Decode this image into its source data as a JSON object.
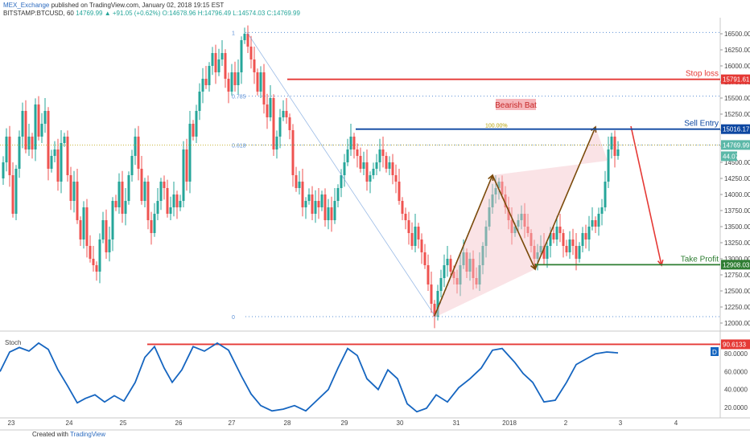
{
  "header": {
    "publisher": "MEX_Exchange",
    "published_text": "published on TradingView.com, January 02, 2018 19:15 EST",
    "symbol": "BITSTAMP:BTCUSD, 60",
    "ohlc": "14769.99 ▲ +91.05 (+0.62%) O:14678.96 H:14796.49 L:14574.03 C:14769.99"
  },
  "footer": {
    "created_with": "Created with",
    "brand": "TradingView"
  },
  "colors": {
    "up": "#26a69a",
    "down": "#ef5350",
    "stop": "#e53935",
    "entry": "#0d47a1",
    "tp": "#2e7d32",
    "stoch": "#1565c0",
    "arrow": "#7a4a0a"
  },
  "chart_data": [
    {
      "type": "candlestick",
      "title": "",
      "y_ticks": [
        "16500.00",
        "16250.00",
        "16000.00",
        "15750.00",
        "15500.00",
        "15250.00",
        "15000.00",
        "14750.00",
        "14500.00",
        "14250.00",
        "14000.00",
        "13750.00",
        "13500.00",
        "13250.00",
        "13000.00",
        "12750.00",
        "12500.00",
        "12250.00",
        "12000.00"
      ],
      "ylim": [
        11900,
        16750
      ],
      "x_ticks": [
        "23",
        "24",
        "25",
        "26",
        "27",
        "28",
        "29",
        "30",
        "31",
        "2018",
        "2",
        "3",
        "4"
      ],
      "close_path": [
        [
          0,
          14250
        ],
        [
          4,
          14500
        ],
        [
          8,
          14900
        ],
        [
          12,
          14300
        ],
        [
          16,
          13700
        ],
        [
          20,
          14400
        ],
        [
          24,
          14900
        ],
        [
          28,
          15300
        ],
        [
          32,
          14700
        ],
        [
          36,
          14900
        ],
        [
          40,
          14700
        ],
        [
          44,
          15400
        ],
        [
          48,
          14900
        ],
        [
          52,
          15100
        ],
        [
          56,
          15300
        ],
        [
          60,
          14400
        ],
        [
          64,
          14600
        ],
        [
          68,
          14700
        ],
        [
          72,
          14200
        ],
        [
          76,
          14800
        ],
        [
          80,
          14900
        ],
        [
          84,
          14300
        ],
        [
          88,
          13900
        ],
        [
          92,
          14200
        ],
        [
          96,
          13600
        ],
        [
          100,
          13300
        ],
        [
          104,
          13800
        ],
        [
          108,
          13200
        ],
        [
          112,
          13000
        ],
        [
          116,
          12900
        ],
        [
          120,
          12800
        ],
        [
          124,
          13300
        ],
        [
          128,
          13600
        ],
        [
          132,
          13100
        ],
        [
          136,
          13300
        ],
        [
          140,
          13900
        ],
        [
          144,
          13800
        ],
        [
          148,
          14200
        ],
        [
          152,
          13700
        ],
        [
          156,
          13900
        ],
        [
          160,
          14300
        ],
        [
          164,
          14600
        ],
        [
          168,
          14900
        ],
        [
          172,
          14400
        ],
        [
          176,
          13900
        ],
        [
          180,
          14200
        ],
        [
          184,
          13600
        ],
        [
          188,
          13400
        ],
        [
          192,
          13700
        ],
        [
          196,
          13900
        ],
        [
          200,
          14200
        ],
        [
          204,
          14100
        ],
        [
          208,
          13700
        ],
        [
          212,
          13800
        ],
        [
          216,
          14000
        ],
        [
          220,
          13800
        ],
        [
          224,
          13900
        ],
        [
          228,
          14700
        ],
        [
          232,
          14200
        ],
        [
          236,
          15100
        ],
        [
          240,
          14900
        ],
        [
          244,
          15300
        ],
        [
          248,
          15600
        ],
        [
          252,
          15800
        ],
        [
          256,
          15700
        ],
        [
          260,
          16000
        ],
        [
          264,
          16200
        ],
        [
          268,
          15900
        ],
        [
          272,
          16100
        ],
        [
          276,
          16200
        ],
        [
          280,
          15800
        ],
        [
          284,
          15600
        ],
        [
          288,
          15900
        ],
        [
          292,
          15700
        ],
        [
          296,
          15900
        ],
        [
          300,
          16400
        ],
        [
          304,
          16500
        ],
        [
          308,
          16300
        ],
        [
          312,
          16100
        ],
        [
          316,
          15900
        ],
        [
          320,
          15600
        ],
        [
          324,
          15900
        ],
        [
          328,
          15400
        ],
        [
          332,
          15200
        ],
        [
          336,
          15500
        ],
        [
          340,
          14700
        ],
        [
          344,
          14900
        ],
        [
          348,
          15200
        ],
        [
          352,
          15300
        ],
        [
          356,
          15200
        ],
        [
          360,
          15000
        ],
        [
          364,
          14300
        ],
        [
          368,
          14100
        ],
        [
          372,
          14200
        ],
        [
          376,
          13800
        ],
        [
          380,
          13900
        ],
        [
          384,
          14000
        ],
        [
          388,
          13700
        ],
        [
          392,
          13900
        ],
        [
          396,
          13800
        ],
        [
          400,
          14000
        ],
        [
          404,
          13600
        ],
        [
          408,
          13800
        ],
        [
          412,
          13600
        ],
        [
          416,
          13900
        ],
        [
          420,
          14100
        ],
        [
          424,
          14300
        ],
        [
          428,
          14500
        ],
        [
          432,
          14700
        ],
        [
          436,
          14900
        ],
        [
          440,
          14700
        ],
        [
          444,
          14600
        ],
        [
          448,
          14400
        ],
        [
          452,
          14500
        ],
        [
          456,
          14200
        ],
        [
          460,
          14300
        ],
        [
          464,
          14400
        ],
        [
          468,
          14500
        ],
        [
          472,
          14700
        ],
        [
          476,
          14600
        ],
        [
          480,
          14400
        ],
        [
          484,
          14500
        ],
        [
          488,
          14300
        ],
        [
          492,
          14200
        ],
        [
          496,
          13900
        ],
        [
          500,
          13700
        ],
        [
          504,
          13600
        ],
        [
          508,
          13400
        ],
        [
          512,
          13200
        ],
        [
          516,
          13500
        ],
        [
          520,
          13300
        ],
        [
          524,
          13100
        ],
        [
          528,
          12900
        ],
        [
          532,
          12600
        ],
        [
          536,
          12300
        ],
        [
          540,
          12100
        ],
        [
          544,
          12500
        ],
        [
          548,
          12700
        ],
        [
          552,
          12900
        ],
        [
          556,
          13000
        ],
        [
          560,
          12800
        ],
        [
          564,
          12700
        ],
        [
          568,
          12600
        ],
        [
          572,
          12900
        ],
        [
          576,
          13100
        ],
        [
          580,
          12800
        ],
        [
          584,
          13000
        ],
        [
          588,
          12700
        ],
        [
          592,
          12600
        ],
        [
          596,
          12900
        ],
        [
          600,
          13200
        ],
        [
          604,
          13500
        ],
        [
          608,
          13800
        ],
        [
          612,
          14000
        ],
        [
          616,
          14100
        ],
        [
          620,
          14200
        ],
        [
          624,
          14000
        ],
        [
          628,
          13800
        ],
        [
          632,
          13600
        ],
        [
          636,
          13400
        ],
        [
          640,
          13500
        ],
        [
          644,
          13600
        ],
        [
          648,
          13700
        ],
        [
          652,
          13500
        ],
        [
          656,
          13400
        ],
        [
          660,
          13200
        ],
        [
          664,
          13000
        ],
        [
          668,
          13100
        ],
        [
          672,
          13200
        ],
        [
          676,
          13000
        ],
        [
          680,
          13200
        ],
        [
          684,
          13400
        ],
        [
          688,
          13300
        ],
        [
          692,
          13500
        ],
        [
          696,
          13400
        ],
        [
          700,
          13200
        ],
        [
          704,
          13100
        ],
        [
          708,
          13300
        ],
        [
          712,
          13200
        ],
        [
          716,
          13000
        ],
        [
          720,
          13200
        ],
        [
          724,
          13400
        ],
        [
          728,
          13300
        ],
        [
          732,
          13500
        ],
        [
          736,
          13600
        ],
        [
          740,
          13500
        ],
        [
          744,
          13700
        ],
        [
          748,
          13800
        ],
        [
          752,
          14200
        ],
        [
          756,
          14700
        ],
        [
          760,
          14900
        ],
        [
          764,
          14600
        ],
        [
          768,
          14700
        ]
      ],
      "levels": [
        {
          "label": "Stop loss",
          "value": 15791.61,
          "value_label": "15791.61",
          "color": "#e53935"
        },
        {
          "label": "Sell Entry",
          "value": 15016.17,
          "value_label": "15016.17",
          "color": "#0d47a1"
        },
        {
          "label": "Take Profit",
          "value": 12908.03,
          "value_label": "12908.03",
          "color": "#2e7d32"
        }
      ],
      "last_price_label": "14769.99",
      "last_price": 14769.99,
      "volume_label": "44.07",
      "fib_levels": [
        {
          "label": "1",
          "value": 16520
        },
        {
          "label": "0.785",
          "value": 15530
        },
        {
          "label": "0.618",
          "value": 14770
        },
        {
          "label": "0",
          "value": 12100
        }
      ],
      "entry_fib_label": "100.00%",
      "pattern_label": "Bearish Bat"
    },
    {
      "type": "line",
      "name": "Stoch",
      "y_ticks": [
        "80.0000",
        "60.0000",
        "40.0000",
        "20.0000"
      ],
      "ylim": [
        10,
        100
      ],
      "level_label": "90.6133",
      "level_value": 90.6133,
      "badge": "D",
      "points": [
        [
          0,
          60
        ],
        [
          12,
          82
        ],
        [
          24,
          87
        ],
        [
          36,
          83
        ],
        [
          48,
          92
        ],
        [
          60,
          85
        ],
        [
          72,
          62
        ],
        [
          84,
          44
        ],
        [
          96,
          25
        ],
        [
          106,
          30
        ],
        [
          118,
          34
        ],
        [
          130,
          26
        ],
        [
          142,
          33
        ],
        [
          154,
          27
        ],
        [
          168,
          48
        ],
        [
          180,
          76
        ],
        [
          192,
          88
        ],
        [
          204,
          64
        ],
        [
          214,
          48
        ],
        [
          226,
          62
        ],
        [
          240,
          88
        ],
        [
          254,
          83
        ],
        [
          270,
          92
        ],
        [
          284,
          84
        ],
        [
          300,
          55
        ],
        [
          312,
          35
        ],
        [
          324,
          22
        ],
        [
          338,
          16
        ],
        [
          352,
          18
        ],
        [
          366,
          22
        ],
        [
          380,
          16
        ],
        [
          394,
          28
        ],
        [
          408,
          40
        ],
        [
          420,
          64
        ],
        [
          432,
          86
        ],
        [
          444,
          78
        ],
        [
          456,
          52
        ],
        [
          470,
          40
        ],
        [
          482,
          62
        ],
        [
          494,
          52
        ],
        [
          506,
          24
        ],
        [
          518,
          15
        ],
        [
          530,
          19
        ],
        [
          542,
          34
        ],
        [
          556,
          26
        ],
        [
          570,
          42
        ],
        [
          584,
          52
        ],
        [
          598,
          64
        ],
        [
          612,
          84
        ],
        [
          624,
          86
        ],
        [
          640,
          70
        ],
        [
          650,
          58
        ],
        [
          662,
          48
        ],
        [
          676,
          26
        ],
        [
          690,
          28
        ],
        [
          704,
          48
        ],
        [
          716,
          68
        ],
        [
          728,
          74
        ],
        [
          740,
          80
        ],
        [
          754,
          82
        ],
        [
          768,
          81
        ]
      ]
    }
  ]
}
